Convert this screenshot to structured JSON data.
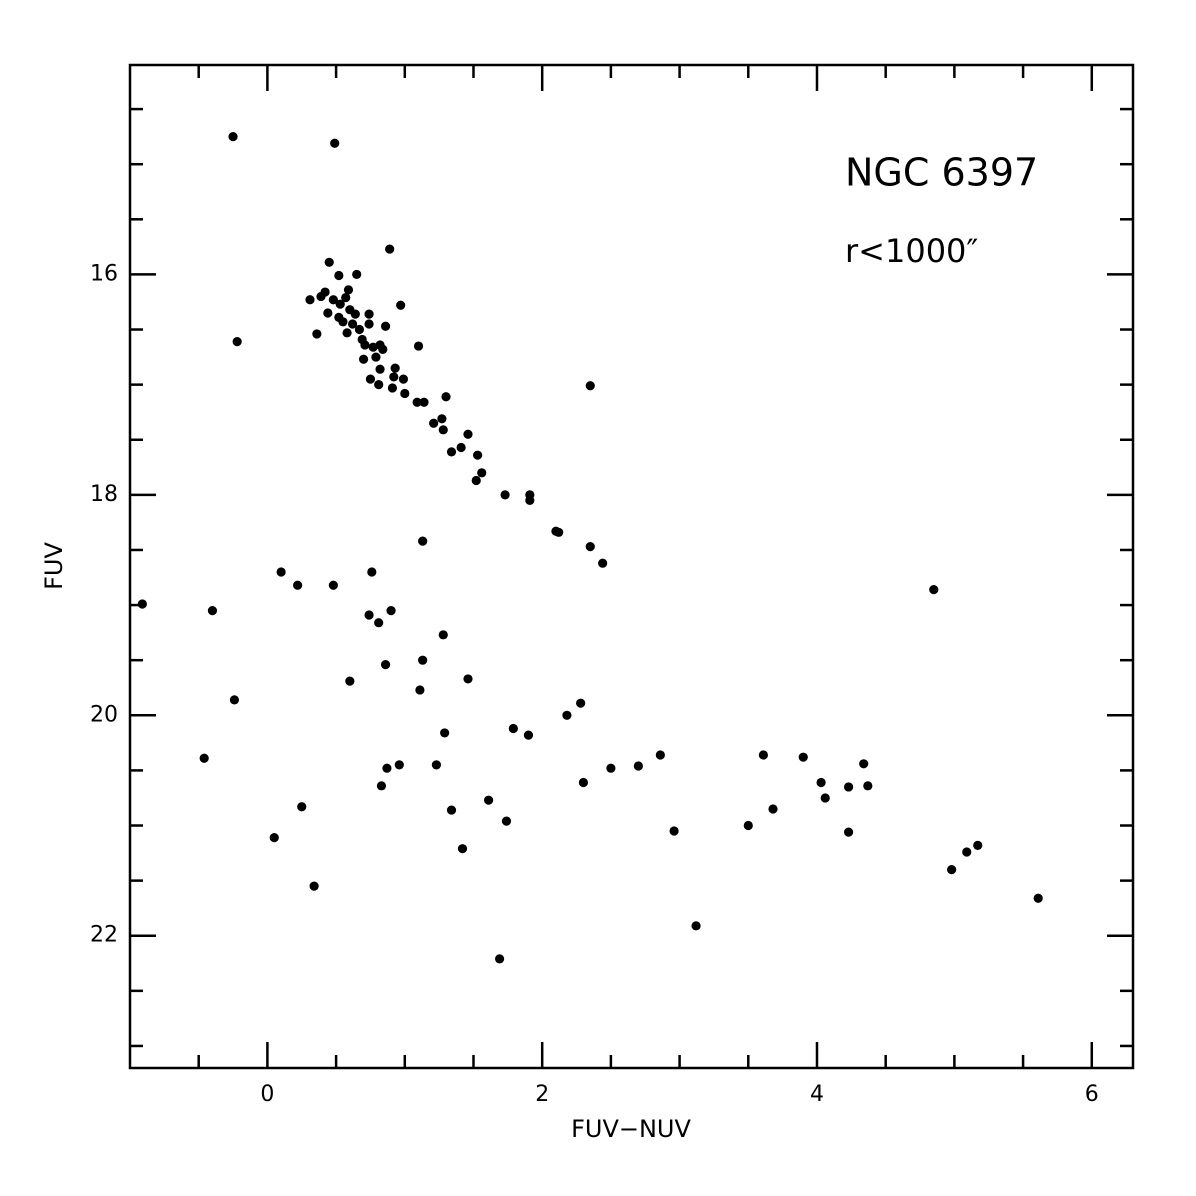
{
  "chart_data": {
    "type": "scatter",
    "title": "NGC 6397",
    "subtitle": "r<1000″",
    "x_label": "FUV−NUV",
    "y_label": "FUV",
    "color": "#000000",
    "xlim": [
      -1,
      6.3
    ],
    "ylim": [
      23.2,
      14.1
    ],
    "xticks": [
      0,
      2,
      4,
      6
    ],
    "yticks": [
      16,
      18,
      20,
      22
    ],
    "xminorticks": [
      -0.5,
      0.5,
      1,
      1.5,
      2.5,
      3,
      3.5,
      4.5,
      5,
      5.5
    ],
    "yminorticks": [
      14.5,
      15,
      15.5,
      16.5,
      17,
      17.5,
      18.5,
      19,
      19.5,
      20.5,
      21,
      21.5,
      22.5,
      23
    ],
    "x": [
      -0.25,
      0.49,
      0.89,
      0.45,
      0.65,
      0.52,
      0.31,
      0.39,
      0.42,
      0.97,
      -0.22,
      0.36,
      0.44,
      0.48,
      0.53,
      0.57,
      0.59,
      0.6,
      0.52,
      0.55,
      0.62,
      0.64,
      0.67,
      0.58,
      0.69,
      0.74,
      0.74,
      0.71,
      0.77,
      0.82,
      0.86,
      0.79,
      0.84,
      1.1,
      0.7,
      0.82,
      0.75,
      0.81,
      0.92,
      0.93,
      0.99,
      0.91,
      1.0,
      1.09,
      1.14,
      1.3,
      1.21,
      1.27,
      1.28,
      1.46,
      1.41,
      1.34,
      1.53,
      1.56,
      1.52,
      2.35,
      1.73,
      1.91,
      1.91,
      2.1,
      2.12,
      1.13,
      2.35,
      2.44,
      0.1,
      0.22,
      0.48,
      0.76,
      -0.91,
      -0.4,
      0.74,
      0.81,
      0.9,
      1.28,
      4.85,
      0.86,
      1.13,
      0.6,
      1.46,
      1.11,
      -0.24,
      2.28,
      2.18,
      1.29,
      1.79,
      1.9,
      -0.46,
      2.86,
      3.61,
      3.9,
      4.34,
      0.96,
      0.87,
      1.23,
      2.5,
      2.7,
      2.3,
      4.03,
      4.37,
      4.23,
      0.83,
      4.06,
      0.25,
      1.61,
      1.34,
      3.68,
      1.74,
      3.5,
      2.96,
      4.23,
      0.05,
      1.42,
      5.17,
      5.09,
      4.98,
      0.34,
      5.61,
      3.12,
      1.69
    ],
    "values": [
      14.75,
      14.81,
      15.77,
      15.89,
      16.0,
      16.01,
      16.23,
      16.2,
      16.16,
      16.28,
      16.61,
      16.54,
      16.35,
      16.23,
      16.27,
      16.21,
      16.14,
      16.32,
      16.39,
      16.43,
      16.45,
      16.36,
      16.5,
      16.53,
      16.59,
      16.45,
      16.36,
      16.64,
      16.66,
      16.64,
      16.47,
      16.75,
      16.68,
      16.65,
      16.77,
      16.86,
      16.95,
      17.0,
      16.93,
      16.85,
      16.95,
      17.03,
      17.08,
      17.16,
      17.16,
      17.11,
      17.35,
      17.31,
      17.41,
      17.45,
      17.57,
      17.61,
      17.64,
      17.8,
      17.87,
      17.01,
      18.0,
      18.0,
      18.05,
      18.33,
      18.34,
      18.42,
      18.47,
      18.62,
      18.7,
      18.82,
      18.82,
      18.7,
      18.99,
      19.05,
      19.09,
      19.16,
      19.05,
      19.27,
      18.86,
      19.54,
      19.5,
      19.69,
      19.67,
      19.77,
      19.86,
      19.89,
      20.0,
      20.16,
      20.12,
      20.18,
      20.39,
      20.36,
      20.36,
      20.38,
      20.44,
      20.45,
      20.48,
      20.45,
      20.48,
      20.46,
      20.61,
      20.61,
      20.64,
      20.65,
      20.64,
      20.75,
      20.83,
      20.77,
      20.86,
      20.85,
      20.96,
      21.0,
      21.05,
      21.06,
      21.11,
      21.21,
      21.18,
      21.24,
      21.4,
      21.55,
      21.66,
      21.91,
      22.21
    ]
  }
}
